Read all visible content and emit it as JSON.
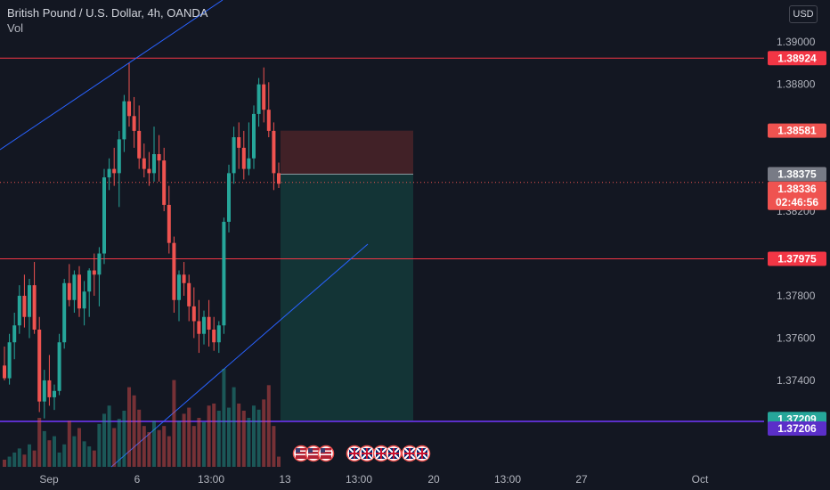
{
  "header": {
    "symbol_line": "British Pound / U.S. Dollar, 4h, OANDA",
    "volume_label": "Vol"
  },
  "currency_button": "USD",
  "colors": {
    "background": "#131722",
    "bull": "#26a69a",
    "bear": "#ef5350",
    "horizontal_line": "#f23645",
    "trend_line": "#2962ff",
    "purple_line": "#5b2fc9",
    "stop_zone": "#4a2328",
    "target_zone": "#143a3a"
  },
  "chart_data": {
    "type": "candlestick",
    "y_axis": {
      "ticks": [
        "1.39000",
        "1.38800",
        "1.38200",
        "1.37800",
        "1.37600",
        "1.37400"
      ],
      "ylim": [
        1.3705,
        1.3914
      ]
    },
    "x_axis": {
      "ticks": [
        "Sep",
        "6",
        "13:00",
        "13",
        "13:00",
        "20",
        "13:00",
        "27",
        "Oct"
      ]
    },
    "candles": [
      [
        1.3747,
        1.3756,
        1.374,
        1.3741
      ],
      [
        1.3741,
        1.3762,
        1.3738,
        1.3758
      ],
      [
        1.3758,
        1.3772,
        1.375,
        1.3766
      ],
      [
        1.3766,
        1.3785,
        1.3762,
        1.378
      ],
      [
        1.378,
        1.379,
        1.3765,
        1.377
      ],
      [
        1.377,
        1.3788,
        1.376,
        1.3785
      ],
      [
        1.3785,
        1.3796,
        1.3762,
        1.3764
      ],
      [
        1.3764,
        1.377,
        1.3725,
        1.373
      ],
      [
        1.373,
        1.3745,
        1.3722,
        1.374
      ],
      [
        1.374,
        1.3752,
        1.3728,
        1.3732
      ],
      [
        1.3732,
        1.3738,
        1.3726,
        1.3735
      ],
      [
        1.3735,
        1.3762,
        1.3733,
        1.3758
      ],
      [
        1.3758,
        1.3788,
        1.3755,
        1.3786
      ],
      [
        1.3786,
        1.3795,
        1.3775,
        1.3778
      ],
      [
        1.3778,
        1.3792,
        1.3772,
        1.379
      ],
      [
        1.379,
        1.3794,
        1.377,
        1.3774
      ],
      [
        1.3774,
        1.3787,
        1.3766,
        1.3782
      ],
      [
        1.3782,
        1.3793,
        1.377,
        1.3792
      ],
      [
        1.3792,
        1.38,
        1.378,
        1.379
      ],
      [
        1.379,
        1.3803,
        1.3775,
        1.38
      ],
      [
        1.38,
        1.384,
        1.3795,
        1.3836
      ],
      [
        1.3836,
        1.3845,
        1.383,
        1.384
      ],
      [
        1.384,
        1.385,
        1.3832,
        1.3838
      ],
      [
        1.3838,
        1.3858,
        1.3822,
        1.3854
      ],
      [
        1.3854,
        1.3875,
        1.3848,
        1.3872
      ],
      [
        1.3872,
        1.389,
        1.386,
        1.3865
      ],
      [
        1.3865,
        1.3874,
        1.385,
        1.3858
      ],
      [
        1.3858,
        1.387,
        1.384,
        1.3845
      ],
      [
        1.3845,
        1.3852,
        1.3836,
        1.384
      ],
      [
        1.384,
        1.3848,
        1.3832,
        1.3838
      ],
      [
        1.3838,
        1.386,
        1.3834,
        1.3847
      ],
      [
        1.3847,
        1.3856,
        1.3834,
        1.3844
      ],
      [
        1.3844,
        1.385,
        1.382,
        1.3823
      ],
      [
        1.3823,
        1.3832,
        1.38,
        1.3805
      ],
      [
        1.3805,
        1.3808,
        1.3772,
        1.3778
      ],
      [
        1.3778,
        1.3792,
        1.3768,
        1.379
      ],
      [
        1.379,
        1.3796,
        1.378,
        1.3786
      ],
      [
        1.3786,
        1.379,
        1.3768,
        1.3775
      ],
      [
        1.3775,
        1.3784,
        1.376,
        1.3768
      ],
      [
        1.3768,
        1.3778,
        1.3753,
        1.3762
      ],
      [
        1.3762,
        1.3773,
        1.3757,
        1.377
      ],
      [
        1.377,
        1.3778,
        1.3756,
        1.3764
      ],
      [
        1.3764,
        1.377,
        1.3754,
        1.3758
      ],
      [
        1.3758,
        1.3768,
        1.3753,
        1.3766
      ],
      [
        1.3766,
        1.3817,
        1.3762,
        1.3815
      ],
      [
        1.3815,
        1.3842,
        1.381,
        1.3838
      ],
      [
        1.3838,
        1.386,
        1.3833,
        1.3855
      ],
      [
        1.3855,
        1.3862,
        1.384,
        1.385
      ],
      [
        1.385,
        1.3858,
        1.3835,
        1.384
      ],
      [
        1.384,
        1.3862,
        1.3837,
        1.3845
      ],
      [
        1.3845,
        1.387,
        1.384,
        1.3866
      ],
      [
        1.3866,
        1.3883,
        1.386,
        1.388
      ],
      [
        1.388,
        1.3888,
        1.3862,
        1.3868
      ],
      [
        1.3868,
        1.3881,
        1.3855,
        1.3858
      ],
      [
        1.3858,
        1.3862,
        1.383,
        1.3838
      ],
      [
        1.3838,
        1.3843,
        1.3831,
        1.3833
      ]
    ],
    "volume": [
      7,
      10,
      14,
      18,
      12,
      22,
      16,
      48,
      35,
      26,
      30,
      14,
      22,
      45,
      30,
      38,
      25,
      20,
      16,
      42,
      52,
      60,
      38,
      47,
      55,
      78,
      70,
      56,
      40,
      34,
      45,
      36,
      40,
      30,
      85,
      45,
      52,
      58,
      40,
      48,
      44,
      60,
      62,
      55,
      96,
      58,
      78,
      62,
      55,
      48,
      60,
      56,
      66,
      80,
      40,
      10
    ],
    "horizontal_lines": [
      {
        "price": 1.38924,
        "label": "1.38924"
      },
      {
        "price": 1.37975,
        "label": "1.37975"
      }
    ],
    "price_tags": [
      {
        "price": 1.38924,
        "label": "1.38924",
        "kind": "line"
      },
      {
        "price": 1.38581,
        "label": "1.38581",
        "kind": "stop"
      },
      {
        "price": 1.38375,
        "label": "1.38375",
        "kind": "entry"
      },
      {
        "price": 1.38336,
        "label": "1.38336",
        "sub": "02:46:56",
        "kind": "last"
      },
      {
        "price": 1.37975,
        "label": "1.37975",
        "kind": "line"
      },
      {
        "price": 1.37209,
        "label": "1.37209",
        "kind": "target"
      },
      {
        "price": 1.37206,
        "label": "1.37206",
        "kind": "purple"
      }
    ],
    "position": {
      "type": "short",
      "entry": 1.38375,
      "stop": 1.38581,
      "target": 1.37209
    },
    "purple_line_price": 1.37206,
    "last_price": 1.38336,
    "countdown": "02:46:56"
  }
}
